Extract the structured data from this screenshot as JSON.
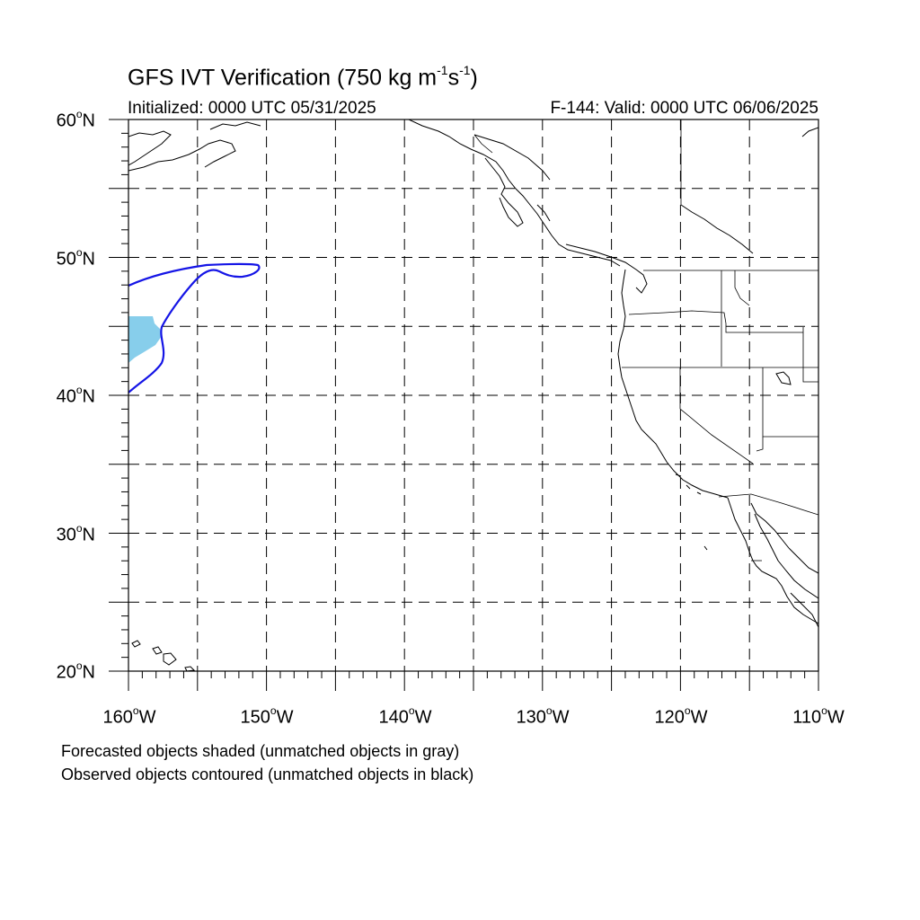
{
  "title": {
    "main": "GFS IVT Verification (750 kg m",
    "exp1": "-1",
    "mid": "s",
    "exp2": "-1",
    "close": ")"
  },
  "subtitle": {
    "initialized": "Initialized: 0000 UTC 05/31/2025",
    "valid": "F-144: Valid: 0000 UTC 06/06/2025"
  },
  "map": {
    "lon_range": [
      -160,
      -110
    ],
    "lat_range": [
      20,
      60
    ],
    "gridlines": "dashed",
    "lat_labels": [
      {
        "deg": "60",
        "hemi": "N"
      },
      {
        "deg": "50",
        "hemi": "N"
      },
      {
        "deg": "40",
        "hemi": "N"
      },
      {
        "deg": "30",
        "hemi": "N"
      },
      {
        "deg": "20",
        "hemi": "N"
      }
    ],
    "lon_labels": [
      {
        "deg": "160",
        "hemi": "W"
      },
      {
        "deg": "150",
        "hemi": "W"
      },
      {
        "deg": "140",
        "hemi": "W"
      },
      {
        "deg": "130",
        "hemi": "W"
      },
      {
        "deg": "120",
        "hemi": "W"
      },
      {
        "deg": "110",
        "hemi": "W"
      }
    ],
    "forecast_object_color": "#87ceeb",
    "observed_contour_color": "#1515e6",
    "coastline_color": "#000000"
  },
  "legend": {
    "line1": "Forecasted objects shaded (unmatched objects in gray)",
    "line2": "Observed objects contoured (unmatched objects in black)"
  }
}
